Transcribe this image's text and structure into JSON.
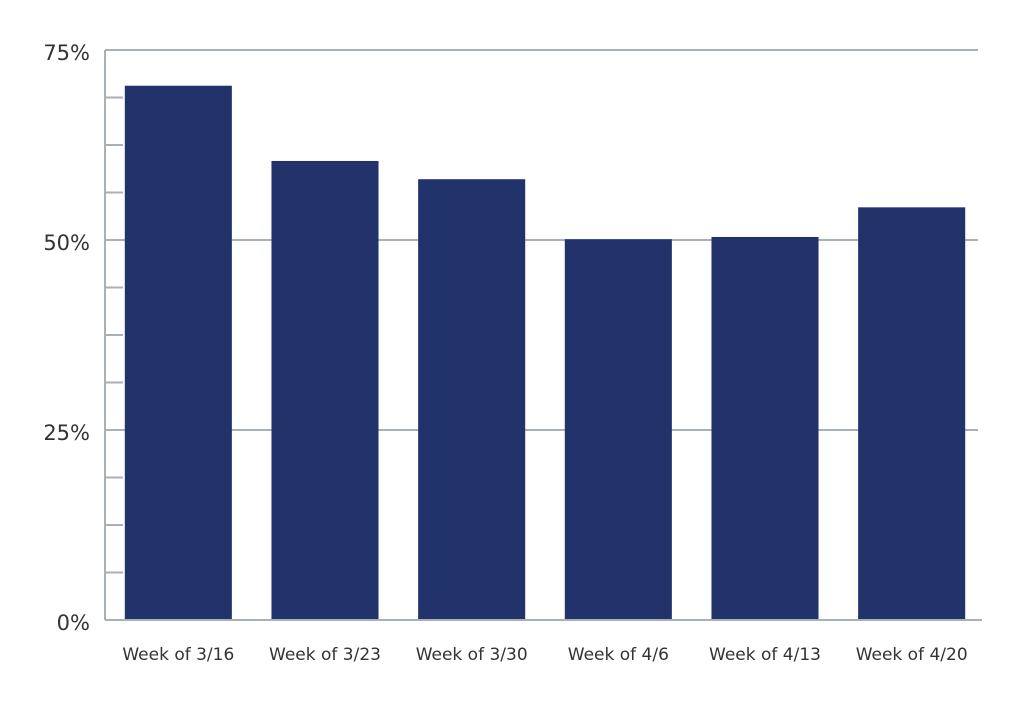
{
  "chart_data": {
    "type": "bar",
    "categories": [
      "Week of 3/16",
      "Week of 3/23",
      "Week of 3/30",
      "Week of 4/6",
      "Week of 4/13",
      "Week of 4/20"
    ],
    "values": [
      70.3,
      60.4,
      58.0,
      50.1,
      50.4,
      54.3
    ],
    "color": "#22336b",
    "ylim": [
      0,
      75
    ],
    "yticks": [
      {
        "value": 0,
        "label": "0%"
      },
      {
        "value": 25,
        "label": "25%"
      },
      {
        "value": 50,
        "label": "50%"
      },
      {
        "value": 75,
        "label": "75%"
      }
    ],
    "minor_yticks": [
      6.25,
      12.5,
      18.75,
      31.25,
      37.5,
      43.75,
      56.25,
      62.5,
      68.75
    ],
    "grid": true
  }
}
